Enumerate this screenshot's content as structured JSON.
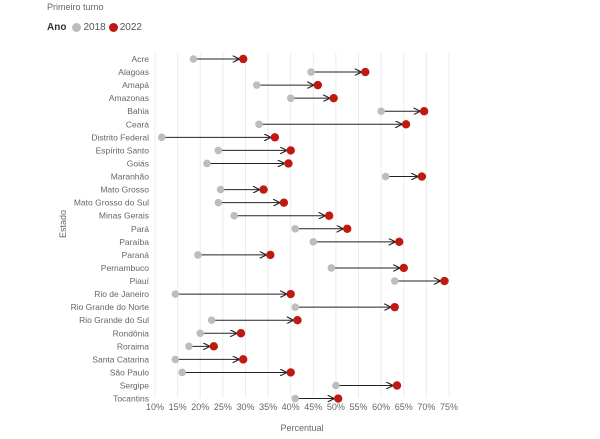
{
  "subtitle": "Primeiro turno",
  "legend": {
    "title": "Ano",
    "items": [
      {
        "label": "2018",
        "color": "#bdbdbd"
      },
      {
        "label": "2022",
        "color": "#c0190f"
      }
    ]
  },
  "chart_data": {
    "type": "dumbbell",
    "xlabel": "Percentual",
    "ylabel": "Estado",
    "xlim": [
      10,
      75
    ],
    "xticks": [
      "10%",
      "15%",
      "20%",
      "25%",
      "30%",
      "35%",
      "40%",
      "45%",
      "50%",
      "55%",
      "60%",
      "65%",
      "70%",
      "75%"
    ],
    "grid": "vertical",
    "series_names": [
      "2018",
      "2022"
    ],
    "categories": [
      "Acre",
      "Alagoas",
      "Amapá",
      "Amazonas",
      "Bahia",
      "Ceará",
      "Distrito Federal",
      "Espírito Santo",
      "Goiás",
      "Maranhão",
      "Mato Grosso",
      "Mato Grosso do Sul",
      "Minas Gerais",
      "Pará",
      "Paraíba",
      "Paraná",
      "Pernambuco",
      "Piauí",
      "Rio de Janeiro",
      "Rio Grande do Norte",
      "Rio Grande do Sul",
      "Rondônia",
      "Roraima",
      "Santa Catarina",
      "São Paulo",
      "Sergipe",
      "Tocantins"
    ],
    "values_2018": [
      18.5,
      44.5,
      32.5,
      40.0,
      60.0,
      33.0,
      11.5,
      24.0,
      21.5,
      61.0,
      24.5,
      24.0,
      27.5,
      41.0,
      45.0,
      19.5,
      49.0,
      63.0,
      14.5,
      41.0,
      22.5,
      20.0,
      17.5,
      14.5,
      16.0,
      50.0,
      41.0
    ],
    "values_2022": [
      29.5,
      56.5,
      46.0,
      49.5,
      69.5,
      65.5,
      36.5,
      40.0,
      39.5,
      69.0,
      34.0,
      38.5,
      48.5,
      52.5,
      64.0,
      35.5,
      65.0,
      74.0,
      40.0,
      63.0,
      41.5,
      29.0,
      23.0,
      29.5,
      40.0,
      63.5,
      50.5
    ]
  }
}
